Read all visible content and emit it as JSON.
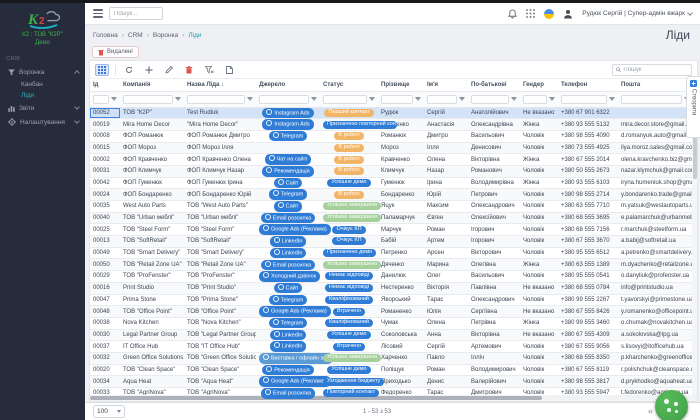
{
  "topbar": {
    "search_placeholder": "Пошук...",
    "user_menu": "Рудюк Сергій | Супер-адмін вжарк",
    "icons": [
      "bell-icon",
      "apps-grid-icon",
      "flag-ukraine-icon",
      "avatar-icon"
    ]
  },
  "sidebar": {
    "org_line1": "К2 : ТОВ \"К2Р\"",
    "org_line2": "Демо",
    "section": "CRM",
    "items": [
      {
        "label": "Воронка",
        "icon": "funnel-icon",
        "expanded": true,
        "children": [
          {
            "label": "Канбан",
            "active": false
          },
          {
            "label": "Ліди",
            "active": true
          }
        ]
      },
      {
        "label": "Звіти",
        "icon": "chart-icon",
        "expanded": false,
        "children": []
      },
      {
        "label": "Налаштування",
        "icon": "gear-icon",
        "expanded": false,
        "children": []
      }
    ]
  },
  "breadcrumb": [
    "Головна",
    "CRM",
    "Воронка",
    "Ліди"
  ],
  "page_title": "Ліди",
  "deleted_button": "Видалені",
  "toolbar_icons": [
    "columns-icon",
    "refresh-icon",
    "add-icon",
    "edit-icon",
    "delete-icon",
    "filter-clear-icon",
    "export-icon"
  ],
  "table_search_placeholder": "Пошук",
  "side_tab_label": "Створити",
  "table": {
    "headers": [
      "Ід",
      "Компанія",
      "Назва Ліда",
      "Джерело",
      "Статус",
      "Прізвище",
      "Ім'я",
      "По-батькові",
      "Гендер",
      "Телефон",
      "Пошта"
    ],
    "sorted_column": "Назва Ліда",
    "sort_direction": "↓",
    "rows": [
      {
        "id": "00052",
        "company": "ТОВ \"К2Р\"",
        "lead": "Test Rudiuk",
        "source": "Instagram Ads",
        "source_variant": "blue",
        "status": "Перший контакт",
        "status_variant": "orange",
        "last": "Рудюк",
        "first": "Сергій",
        "middle": "Анатолійович",
        "gender": "Не вказано",
        "phone": "+380 67 901 6322",
        "email": "",
        "selected": true
      },
      {
        "id": "00019",
        "company": "Mira Home Decor",
        "lead": "\"Mira Home Decor\"",
        "source": "Instagram Ads",
        "source_variant": "blue",
        "status": "Призначено повторний контакт",
        "status_variant": "blue",
        "last": "Яременко",
        "first": "Анастасія",
        "middle": "Олександрівна",
        "gender": "Жінка",
        "phone": "+380 93 555 5132",
        "email": "mira.decor.store@gmail.com"
      },
      {
        "id": "00008",
        "company": "ФОП Романюк",
        "lead": "ФОП Романюк Дмитро",
        "source": "Telegram",
        "source_variant": "blue",
        "status": "В роботі",
        "status_variant": "orange",
        "last": "Романюк",
        "first": "Дмитро",
        "middle": "Васильович",
        "gender": "Чоловік",
        "phone": "+380 98 555 4090",
        "email": "d.romanyuk.auto@gmail.com"
      },
      {
        "id": "00015",
        "company": "ФОП Мороз",
        "lead": "ФОП Мороз Ілля",
        "source": "",
        "source_variant": "",
        "status": "В роботі",
        "status_variant": "orange",
        "last": "Мороз",
        "first": "Ілля",
        "middle": "Денисович",
        "gender": "Чоловік",
        "phone": "+380 73 555 4925",
        "email": "ilya.moroz.sales@gmail.com"
      },
      {
        "id": "00002",
        "company": "ФОП Кравченко",
        "lead": "ФОП Кравченко Олена",
        "source": "Чат на сайті",
        "source_variant": "blue",
        "status": "В роботі",
        "status_variant": "orange",
        "last": "Кравченко",
        "first": "Олена",
        "middle": "Вікторівна",
        "gender": "Жінка",
        "phone": "+380 67 555 2014",
        "email": "olena.kravchenko.biz@gmail.com"
      },
      {
        "id": "00031",
        "company": "ФОП Климчук",
        "lead": "ФОП Климчук Назар",
        "source": "Рекомендація",
        "source_variant": "blue",
        "status": "В роботі",
        "status_variant": "orange",
        "last": "Климчук",
        "first": "Назар",
        "middle": "Романович",
        "gender": "Чоловік",
        "phone": "+380 50 555 2673",
        "email": "nazar.klymchuk@gmail.com"
      },
      {
        "id": "00042",
        "company": "ФОП Гуменюк",
        "lead": "ФОП Гуменюк Ірина",
        "source": "Сайт",
        "source_variant": "blue",
        "status": "Успішне демо",
        "status_variant": "blue",
        "last": "Гуменюк",
        "first": "Ірина",
        "middle": "Володимирівна",
        "gender": "Жінка",
        "phone": "+380 93 555 6103",
        "email": "iryna.humeniuk.shop@gmail.com"
      },
      {
        "id": "00024",
        "company": "ФОП Бондаренко",
        "lead": "ФОП Бондаренко Юрій",
        "source": "Telegram",
        "source_variant": "blue",
        "status": "В роботі",
        "status_variant": "orange",
        "last": "Бондаренко",
        "first": "Юрій",
        "middle": "Петрович",
        "gender": "Чоловік",
        "phone": "+380 98 555 2714",
        "email": "y.bondarenko.trade@gmail.com"
      },
      {
        "id": "00035",
        "company": "West Auto Parts",
        "lead": "ТОВ \"West Auto Parts\"",
        "source": "Сайт",
        "source_variant": "blue",
        "status": "Успішно завершено",
        "status_variant": "green",
        "last": "Яцук",
        "first": "Максим",
        "middle": "Олександрович",
        "gender": "Чоловік",
        "phone": "+380 63 555 7710",
        "email": "m.yatsuk@westautoparts.ua"
      },
      {
        "id": "00040",
        "company": "ТОВ \"Urban меблі\"",
        "lead": "ТОВ \"Urban меблі\"",
        "source": "Email розсилка",
        "source_variant": "blue",
        "status": "Успішно завершено",
        "status_variant": "green",
        "last": "Паламарчук",
        "first": "Євген",
        "middle": "Олексійович",
        "gender": "Чоловік",
        "phone": "+380 68 555 3695",
        "email": "e.palamarchuk@urbanmebli.ua"
      },
      {
        "id": "00025",
        "company": "ТОВ \"Steel Form\"",
        "lead": "ТОВ \"Steel Form\"",
        "source": "Google Ads (Реклама)",
        "source_variant": "blue",
        "status": "Очікує КП",
        "status_variant": "blue",
        "last": "Марчук",
        "first": "Роман",
        "middle": "Ігорович",
        "gender": "Чоловік",
        "phone": "+380 68 555 7156",
        "email": "r.marchuk@steelform.ua"
      },
      {
        "id": "00013",
        "company": "ТОВ \"SoftRetail\"",
        "lead": "ТОВ \"SoftRetail\"",
        "source": "LinkedIn",
        "source_variant": "blue",
        "status": "Очікує КП",
        "status_variant": "blue",
        "last": "Бабій",
        "first": "Артем",
        "middle": "Ігорович",
        "gender": "Чоловік",
        "phone": "+380 67 555 3670",
        "email": "a.babij@softretail.ua"
      },
      {
        "id": "00049",
        "company": "ТОВ \"Smart Delivery\"",
        "lead": "ТОВ \"Smart Delivery\"",
        "source": "LinkedIn",
        "source_variant": "blue",
        "status": "Призначено демо",
        "status_variant": "blue",
        "last": "Петренко",
        "first": "Арсен",
        "middle": "Вікторович",
        "gender": "Чоловік",
        "phone": "+380 95 555 6512",
        "email": "a.petrenko@smartdelivery.ua"
      },
      {
        "id": "00050",
        "company": "ТОВ \"Retail Zone UA\"",
        "lead": "ТОВ \"Retail Zone UA\"",
        "source": "Email розсилка",
        "source_variant": "blue",
        "status": "Успішно завершено",
        "status_variant": "green",
        "last": "Дяченко",
        "first": "Марина",
        "middle": "Олегівна",
        "gender": "Жінка",
        "phone": "+380 63 555 1389",
        "email": "m.dyachenko@retailzone.ua"
      },
      {
        "id": "00029",
        "company": "ТОВ \"ProFenster\"",
        "lead": "ТОВ \"ProFenster\"",
        "source": "Холодний дзвінок",
        "source_variant": "blue",
        "status": "Немає відповіді",
        "status_variant": "blue",
        "last": "Данилюк",
        "first": "Олег",
        "middle": "Васильович",
        "gender": "Чоловік",
        "phone": "+380 95 555 0541",
        "email": "o.danyliuk@profenster.ua"
      },
      {
        "id": "00016",
        "company": "Print Studio",
        "lead": "ТОВ \"Print Studio\"",
        "source": "Сайт",
        "source_variant": "blue",
        "status": "Немає відповіді",
        "status_variant": "blue",
        "last": "Нестеренко",
        "first": "Вікторія",
        "middle": "Павлівна",
        "gender": "Не вказано",
        "phone": "+380 68 555 0784",
        "email": "info@printstudio.ua"
      },
      {
        "id": "00047",
        "company": "Prima Stone",
        "lead": "ТОВ \"Prima Stone\"",
        "source": "Telegram",
        "source_variant": "blue",
        "status": "Кваліфікований",
        "status_variant": "blue",
        "last": "Яворський",
        "first": "Тарас",
        "middle": "Олександрович",
        "gender": "Чоловік",
        "phone": "+380 99 555 2267",
        "email": "t.yavorskyi@primestone.ua"
      },
      {
        "id": "00048",
        "company": "ТОВ \"Office Point\"",
        "lead": "ТОВ \"Office Point\"",
        "source": "Google Ads (Реклама)",
        "source_variant": "blue",
        "status": "Втрачено",
        "status_variant": "blue",
        "last": "Романенко",
        "first": "Юлія",
        "middle": "Сергіївна",
        "gender": "Не вказано",
        "phone": "+380 67 555 8426",
        "email": "y.romanenko@officepoint.ua"
      },
      {
        "id": "00038",
        "company": "Nova Kitchen",
        "lead": "ТОВ \"Nova Kitchen\"",
        "source": "Telegram",
        "source_variant": "blue",
        "status": "Кваліфікований",
        "status_variant": "blue",
        "last": "Чумак",
        "first": "Олена",
        "middle": "Петрівна",
        "gender": "Жінка",
        "phone": "+380 99 555 3460",
        "email": "o.chumak@novakitchen.ua"
      },
      {
        "id": "00030",
        "company": "Legal Partner Group",
        "lead": "ТОВ \"Legal Partner Group\"",
        "source": "LinkedIn",
        "source_variant": "blue",
        "status": "Успішне демо",
        "status_variant": "blue",
        "last": "Соколовська",
        "first": "Анна",
        "middle": "Вікторівна",
        "gender": "Не вказано",
        "phone": "+380 67 555 4309",
        "email": "a.sokolovska@lpg.ua"
      },
      {
        "id": "00037",
        "company": "IT Office Hub",
        "lead": "ТОВ \"IT Office Hub\"",
        "source": "LinkedIn",
        "source_variant": "blue",
        "status": "Втрачено",
        "status_variant": "blue",
        "last": "Лісовий",
        "first": "Сергій",
        "middle": "Артемович",
        "gender": "Чоловік",
        "phone": "+380 67 555 9056",
        "email": "s.lisovyi@itofficehub.ua"
      },
      {
        "id": "00032",
        "company": "Green Office Solutions",
        "lead": "ТОВ \"Green Office Solutions\"",
        "source": "Виставка / офлайн захід",
        "source_variant": "lightblue",
        "status": "Успішно завершено",
        "status_variant": "green",
        "last": "Харченко",
        "first": "Павло",
        "middle": "Ілліч",
        "gender": "Чоловік",
        "phone": "+380 68 555 8350",
        "email": "p.kharchenko@greenoffice.ua"
      },
      {
        "id": "00020",
        "company": "ТОВ \"Clean Space\"",
        "lead": "ТОВ \"Clean Space\"",
        "source": "Рекомендація",
        "source_variant": "blue",
        "status": "Успішне демо",
        "status_variant": "blue",
        "last": "Поліщук",
        "first": "Роман",
        "middle": "Володимирович",
        "gender": "Чоловік",
        "phone": "+380 67 555 8119",
        "email": "r.polishchuk@cleanspace.ua"
      },
      {
        "id": "00034",
        "company": "Aqua Heat",
        "lead": "ТОВ \"Aqua Heat\"",
        "source": "Google Ads (Реклама)",
        "source_variant": "blue",
        "status": "Узгодження бюджету",
        "status_variant": "blue",
        "last": "Приходько",
        "first": "Денис",
        "middle": "Валерійович",
        "gender": "Чоловік",
        "phone": "+380 98 555 3817",
        "email": "d.prykhodko@aquaheat.ua"
      },
      {
        "id": "00033",
        "company": "ТОВ \"AgriNova\"",
        "lead": "ТОВ \"AgriNova\"",
        "source": "Email розсилка",
        "source_variant": "blue",
        "status": "Повторний контакт",
        "status_variant": "blue",
        "last": "Федоренко",
        "first": "Тарас",
        "middle": "Дмитрович",
        "gender": "Чоловік",
        "phone": "+380 93 555 5947",
        "email": "t.fedorenko@agrinova.ua"
      }
    ]
  },
  "footer": {
    "page_size": "100",
    "range": "1 - 53 з 53"
  },
  "colors": {
    "accent_teal": "#17a2a6",
    "sidebar_bg": "#262c3c",
    "badge_blue": "#2f7cd6",
    "badge_lightblue": "#5b9bd5",
    "badge_orange": "#f2b566",
    "badge_green": "#a5cf9b",
    "selected_row": "#d3e3f8",
    "fab_green": "#43a047",
    "logo_green": "#3fae49"
  }
}
